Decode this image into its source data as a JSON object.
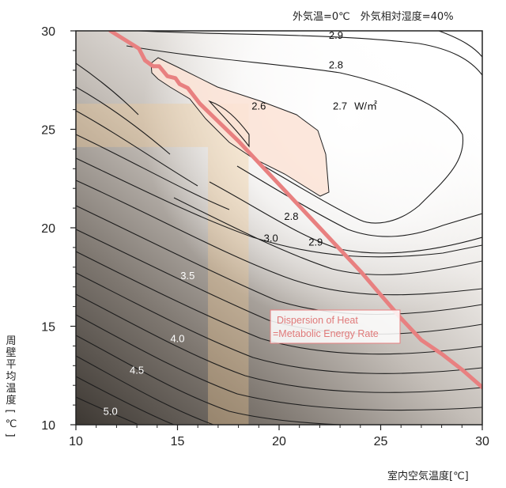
{
  "header": {
    "condition": "外気温=0℃　外気相対湿度=40%"
  },
  "chart_data": {
    "type": "heatmap",
    "title": "",
    "subtitle": "外気温=0℃　外気相対湿度=40%",
    "xlabel": "室内空気温度[℃]",
    "ylabel": "周壁平均温度[℃]",
    "xlim": [
      10,
      30
    ],
    "ylim": [
      10,
      30
    ],
    "x_ticks": [
      "10",
      "15",
      "20",
      "25",
      "30"
    ],
    "y_ticks": [
      "10",
      "15",
      "20",
      "25",
      "30"
    ],
    "grid": false,
    "unit_label": "W/㎡",
    "contour_labels": [
      {
        "text": "2.9",
        "x": 22.8,
        "y": 29.8
      },
      {
        "text": "2.8",
        "x": 22.8,
        "y": 28.3
      },
      {
        "text": "2.7",
        "x": 23.0,
        "y": 26.2
      },
      {
        "text": "2.6",
        "x": 19.0,
        "y": 26.2
      },
      {
        "text": "2.8",
        "x": 20.6,
        "y": 20.6
      },
      {
        "text": "2.9",
        "x": 21.8,
        "y": 19.3
      },
      {
        "text": "3.0",
        "x": 19.6,
        "y": 19.5
      },
      {
        "text": "3.5",
        "x": 15.5,
        "y": 17.6
      },
      {
        "text": "4.0",
        "x": 15.0,
        "y": 14.4
      },
      {
        "text": "4.5",
        "x": 13.0,
        "y": 12.8
      },
      {
        "text": "5.0",
        "x": 11.7,
        "y": 10.7
      }
    ],
    "comfort_line": {
      "label_line1": "Dispersion of Heat",
      "label_line2": "=Metabolic Energy Rate",
      "color": "#e88080",
      "x": [
        11.7,
        13.1,
        13.4,
        13.8,
        14.1,
        14.5,
        14.9,
        15.1,
        15.5,
        16.1,
        17.0,
        18.0,
        19.0,
        20.0,
        21.0,
        22.0,
        23.0,
        24.0,
        25.0,
        26.0,
        27.0,
        28.0,
        29.0,
        30.0
      ],
      "y": [
        30.0,
        29.1,
        28.5,
        28.2,
        28.2,
        27.7,
        27.6,
        27.3,
        27.1,
        26.3,
        25.4,
        24.4,
        23.3,
        22.2,
        21.1,
        20.0,
        18.9,
        17.8,
        16.6,
        15.4,
        14.3,
        13.6,
        12.8,
        11.9
      ]
    },
    "bands": {
      "color": "#f2c891",
      "horizontal_y": [
        24.1,
        26.3
      ],
      "vertical_x": [
        16.5,
        18.5
      ]
    },
    "optimum_region_color": "#fbe3d6"
  }
}
